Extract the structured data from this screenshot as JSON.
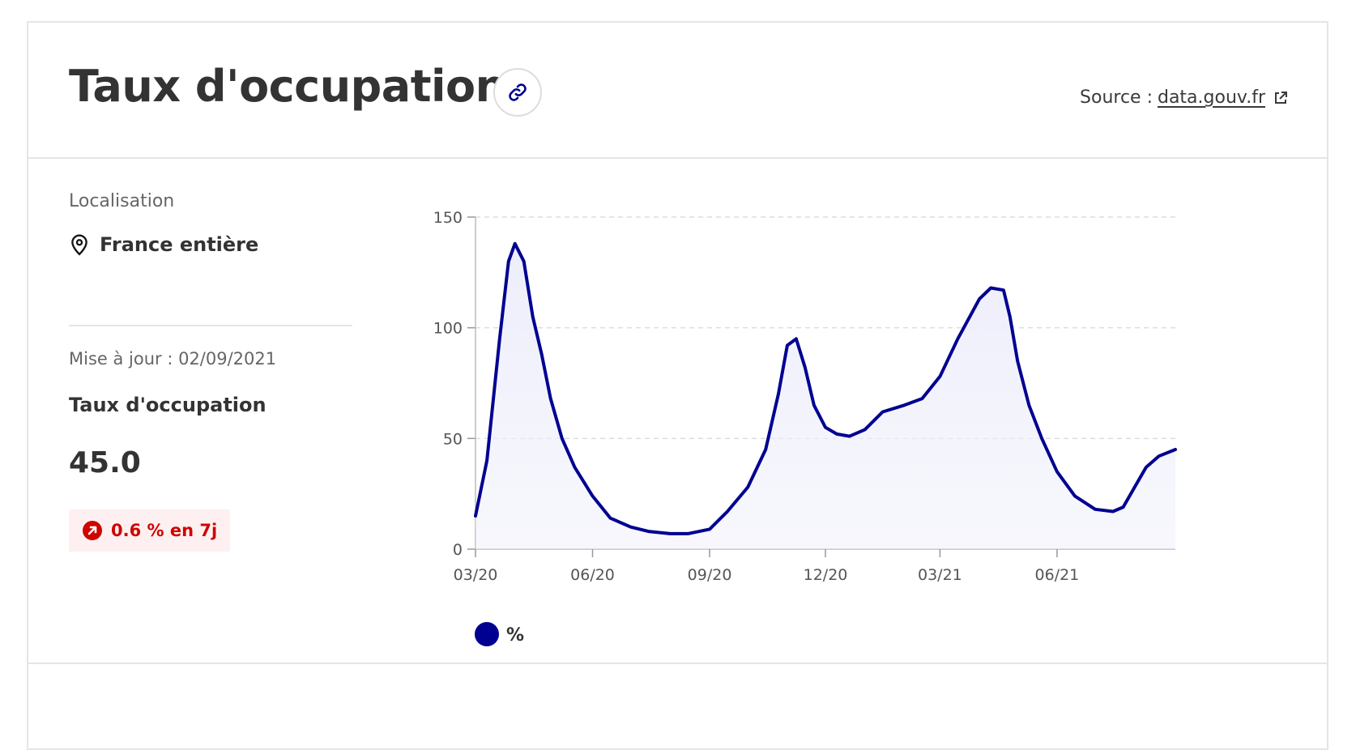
{
  "header": {
    "title": "Taux d'occupation",
    "source_prefix": "Source :",
    "source_link": "data.gouv.fr"
  },
  "sidebar": {
    "location_label": "Localisation",
    "location_value": "France entière",
    "update_text": "Mise à jour : 02/09/2021",
    "metric_label": "Taux d'occupation",
    "metric_value": "45.0",
    "trend_text": "0.6 % en 7j"
  },
  "colors": {
    "series": "#000091",
    "area": "#eeeefb",
    "trend": "#ce0500",
    "grid": "#dddddd"
  },
  "icons": [
    "link-icon",
    "external-link-icon",
    "map-pin-icon",
    "arrow-up-right-icon"
  ],
  "chart_data": {
    "type": "area",
    "title": "",
    "xlabel": "",
    "ylabel": "",
    "ylim": [
      0,
      150
    ],
    "yticks": [
      0,
      50,
      100,
      150
    ],
    "xticks": [
      "03/20",
      "06/20",
      "09/20",
      "12/20",
      "03/21",
      "06/21"
    ],
    "grid": true,
    "legend": "bottom-left",
    "series": [
      {
        "name": "%",
        "x": [
          "2020-03-01",
          "2020-03-10",
          "2020-03-20",
          "2020-03-27",
          "2020-04-01",
          "2020-04-08",
          "2020-04-15",
          "2020-04-22",
          "2020-04-29",
          "2020-05-08",
          "2020-05-18",
          "2020-06-01",
          "2020-06-15",
          "2020-07-01",
          "2020-07-15",
          "2020-08-01",
          "2020-08-15",
          "2020-09-01",
          "2020-09-15",
          "2020-10-01",
          "2020-10-15",
          "2020-10-25",
          "2020-11-01",
          "2020-11-08",
          "2020-11-15",
          "2020-11-22",
          "2020-12-01",
          "2020-12-10",
          "2020-12-20",
          "2021-01-01",
          "2021-01-15",
          "2021-02-01",
          "2021-02-15",
          "2021-03-01",
          "2021-03-15",
          "2021-04-01",
          "2021-04-10",
          "2021-04-20",
          "2021-04-25",
          "2021-05-01",
          "2021-05-10",
          "2021-05-20",
          "2021-06-01",
          "2021-06-15",
          "2021-07-01",
          "2021-07-15",
          "2021-07-23",
          "2021-08-01",
          "2021-08-10",
          "2021-08-20",
          "2021-09-02"
        ],
        "values": [
          15,
          40,
          95,
          130,
          138,
          130,
          105,
          88,
          68,
          50,
          37,
          24,
          14,
          10,
          8,
          7,
          7,
          9,
          17,
          28,
          45,
          70,
          92,
          95,
          82,
          65,
          55,
          52,
          51,
          54,
          62,
          65,
          68,
          78,
          95,
          113,
          118,
          117,
          105,
          85,
          65,
          50,
          35,
          24,
          18,
          17,
          19,
          28,
          37,
          42,
          45
        ]
      }
    ]
  }
}
